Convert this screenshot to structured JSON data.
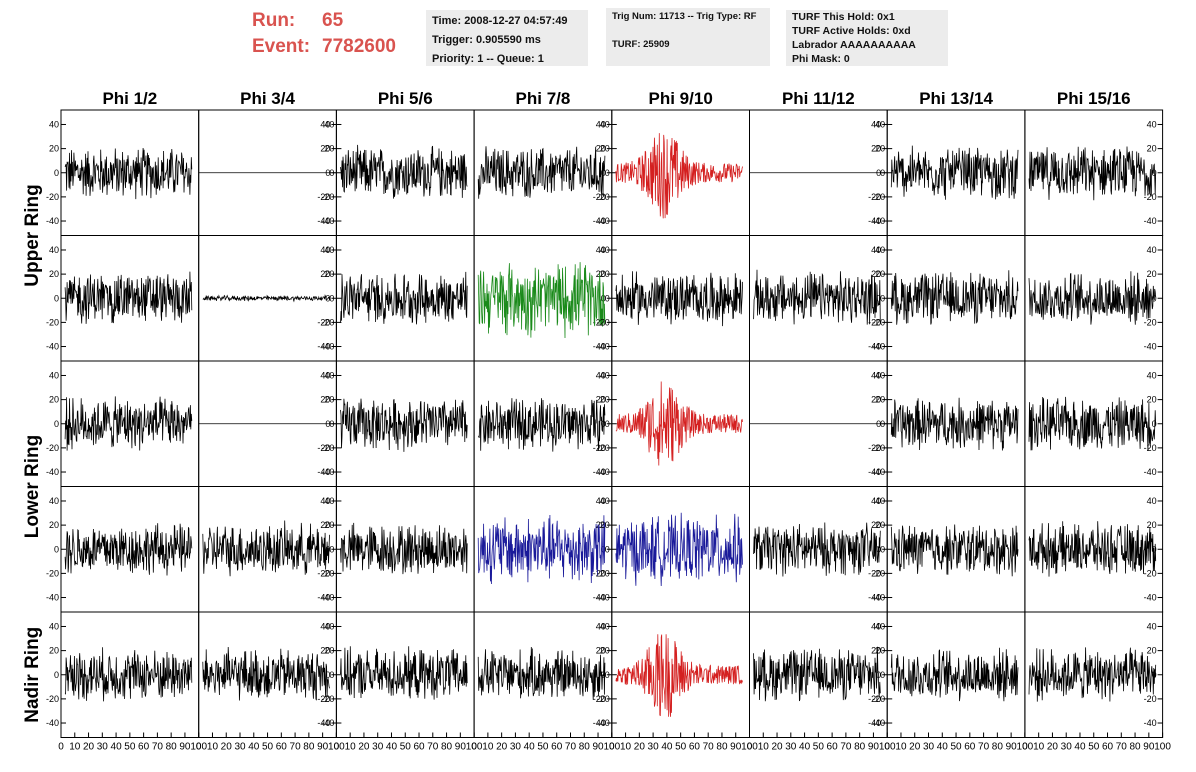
{
  "run_info": {
    "run_label": "Run:",
    "run_value": "65",
    "event_label": "Event:",
    "event_value": "7782600"
  },
  "time_box": {
    "time": "Time: 2008-12-27 04:57:49",
    "trigger": "Trigger: 0.905590 ms",
    "priority": "Priority: 1 -- Queue: 1"
  },
  "trig_box": {
    "trig": "Trig Num: 11713 -- Trig Type: RF",
    "turf": "TURF: 25909"
  },
  "turf_box": {
    "this_hold": "TURF This Hold: 0x1",
    "active_holds": "TURF Active Holds: 0xd",
    "labrador": "Labrador AAAAAAAAAA",
    "phi_mask": "Phi Mask: 0"
  },
  "chart_data": {
    "type": "line",
    "columns": [
      "Phi 1/2",
      "Phi 3/4",
      "Phi 5/6",
      "Phi 7/8",
      "Phi 9/10",
      "Phi 11/12",
      "Phi 13/14",
      "Phi 15/16"
    ],
    "ring_labels": [
      {
        "label": "Upper Ring",
        "rows": [
          0,
          1
        ]
      },
      {
        "label": "Lower Ring",
        "rows": [
          2,
          3
        ]
      },
      {
        "label": "Nadir Ring",
        "rows": [
          4,
          4
        ]
      }
    ],
    "ylim": [
      -52,
      52
    ],
    "yticks": [
      -40,
      -20,
      0,
      20,
      40
    ],
    "xlim": [
      0,
      100
    ],
    "xticks": [
      0,
      10,
      20,
      30,
      40,
      50,
      60,
      70,
      80,
      90,
      100
    ],
    "colors": {
      "normal": "#000000",
      "red": "#d42020",
      "green": "#1a8a1a",
      "blue": "#1a1a9a"
    },
    "panels": [
      [
        "noise",
        "flat",
        "noise",
        "noise",
        "red-burst",
        "flat",
        "noise",
        "noise"
      ],
      [
        "noise",
        "small",
        "noise",
        "green",
        "noise",
        "noise",
        "noise",
        "noise"
      ],
      [
        "noise",
        "flat",
        "noise",
        "noise",
        "red-burst",
        "flat",
        "noise",
        "noise"
      ],
      [
        "noise",
        "noise",
        "noise",
        "blue",
        "blue",
        "noise",
        "noise",
        "noise"
      ],
      [
        "noise",
        "noise",
        "noise",
        "noise",
        "red-burst",
        "noise",
        "noise",
        "noise"
      ]
    ]
  }
}
